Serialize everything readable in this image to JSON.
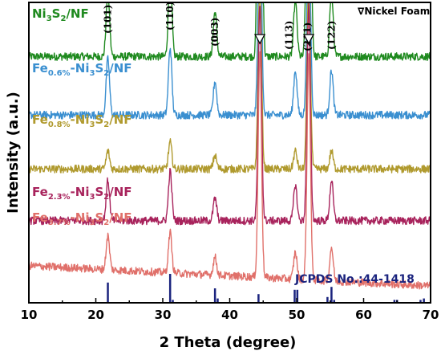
{
  "chart_data": {
    "type": "line",
    "xlabel": "2 Theta (degree)",
    "ylabel": "Intensity (a.u.)",
    "xlim": [
      10,
      70
    ],
    "x_ticks": [
      "10",
      "20",
      "30",
      "40",
      "50",
      "60",
      "70"
    ],
    "nickel_foam_peaks": [
      44.5,
      51.8
    ],
    "nickel_foam_label": "∇Nickel Foam",
    "peak_labels": [
      {
        "text": "(101)",
        "x": 21.8
      },
      {
        "text": "(110)",
        "x": 31.1
      },
      {
        "text": "(003)",
        "x": 37.8
      },
      {
        "text": "(113)",
        "x": 49.8
      },
      {
        "text": "(211)",
        "x": 50.4
      },
      {
        "text": "(122)",
        "x": 55.2
      }
    ],
    "series": [
      {
        "name": "Ni3S2/NF",
        "base": "Ni",
        "sub1": "3",
        "mid": "S",
        "sub2": "2",
        "tail": "/NF",
        "prefix": "",
        "prefix_sub": "",
        "color": "#1f8a1f",
        "baseline": 10.2,
        "slope": 0.0,
        "peaks": [
          [
            21.8,
            3.0
          ],
          [
            31.1,
            4.0
          ],
          [
            37.8,
            2.0
          ],
          [
            44.5,
            30.0
          ],
          [
            49.8,
            2.5
          ],
          [
            51.8,
            30.0
          ],
          [
            55.2,
            3.0
          ]
        ]
      },
      {
        "name": "Fe0.6%-Ni3S2/NF",
        "base": "Ni",
        "sub1": "3",
        "mid": "S",
        "sub2": "2",
        "tail": "/NF",
        "prefix": "Fe",
        "prefix_sub": "0.6%",
        "color": "#3a8fd0",
        "baseline": 7.6,
        "slope": 0.0,
        "peaks": [
          [
            21.8,
            2.5
          ],
          [
            31.1,
            3.0
          ],
          [
            37.8,
            1.5
          ],
          [
            44.5,
            10.0
          ],
          [
            49.8,
            2.0
          ],
          [
            51.8,
            10.0
          ],
          [
            55.2,
            2.0
          ]
        ]
      },
      {
        "name": "Fe0.8%-Ni3S2/NF",
        "base": "Ni",
        "sub1": "3",
        "mid": "S",
        "sub2": "2",
        "tail": "/NF",
        "prefix": "Fe",
        "prefix_sub": "0.8%",
        "color": "#b09a2e",
        "baseline": 5.2,
        "slope": 0.0,
        "peaks": [
          [
            21.8,
            0.8
          ],
          [
            31.1,
            1.2
          ],
          [
            37.8,
            0.6
          ],
          [
            44.5,
            8.5
          ],
          [
            49.8,
            0.8
          ],
          [
            51.8,
            8.5
          ],
          [
            55.2,
            0.8
          ]
        ]
      },
      {
        "name": "Fe2.3%-Ni3S2/NF",
        "base": "Ni",
        "sub1": "3",
        "mid": "S",
        "sub2": "2",
        "tail": "/NF",
        "prefix": "Fe",
        "prefix_sub": "2.3%",
        "color": "#a8235c",
        "baseline": 2.9,
        "slope": 0.0,
        "peaks": [
          [
            21.8,
            1.8
          ],
          [
            31.1,
            2.2
          ],
          [
            37.8,
            1.0
          ],
          [
            44.5,
            9.5
          ],
          [
            49.8,
            1.6
          ],
          [
            51.8,
            9.5
          ],
          [
            55.2,
            1.8
          ]
        ]
      },
      {
        "name": "Fe3.7%-Ni3S2/NF",
        "base": "Ni",
        "sub1": "3",
        "mid": "S",
        "sub2": "2",
        "tail": "/NF",
        "prefix": "Fe",
        "prefix_sub": "3.7%",
        "color": "#e0706a",
        "baseline": 0.9,
        "slope": -0.015,
        "peaks": [
          [
            21.8,
            1.5
          ],
          [
            31.1,
            1.8
          ],
          [
            37.8,
            0.8
          ],
          [
            44.5,
            10.0
          ],
          [
            49.8,
            1.2
          ],
          [
            51.8,
            10.0
          ],
          [
            55.2,
            1.5
          ]
        ]
      }
    ],
    "reference": {
      "label": "JCPDS No.:44-1418",
      "color": "#1a237e",
      "lines": [
        [
          21.8,
          0.7
        ],
        [
          31.1,
          1.0
        ],
        [
          31.5,
          0.1
        ],
        [
          37.8,
          0.5
        ],
        [
          38.2,
          0.15
        ],
        [
          44.3,
          0.3
        ],
        [
          49.7,
          0.45
        ],
        [
          50.1,
          0.45
        ],
        [
          54.6,
          0.2
        ],
        [
          55.2,
          0.55
        ],
        [
          55.6,
          0.1
        ],
        [
          64.6,
          0.1
        ],
        [
          65.0,
          0.1
        ],
        [
          68.5,
          0.1
        ],
        [
          69.0,
          0.15
        ]
      ]
    }
  }
}
